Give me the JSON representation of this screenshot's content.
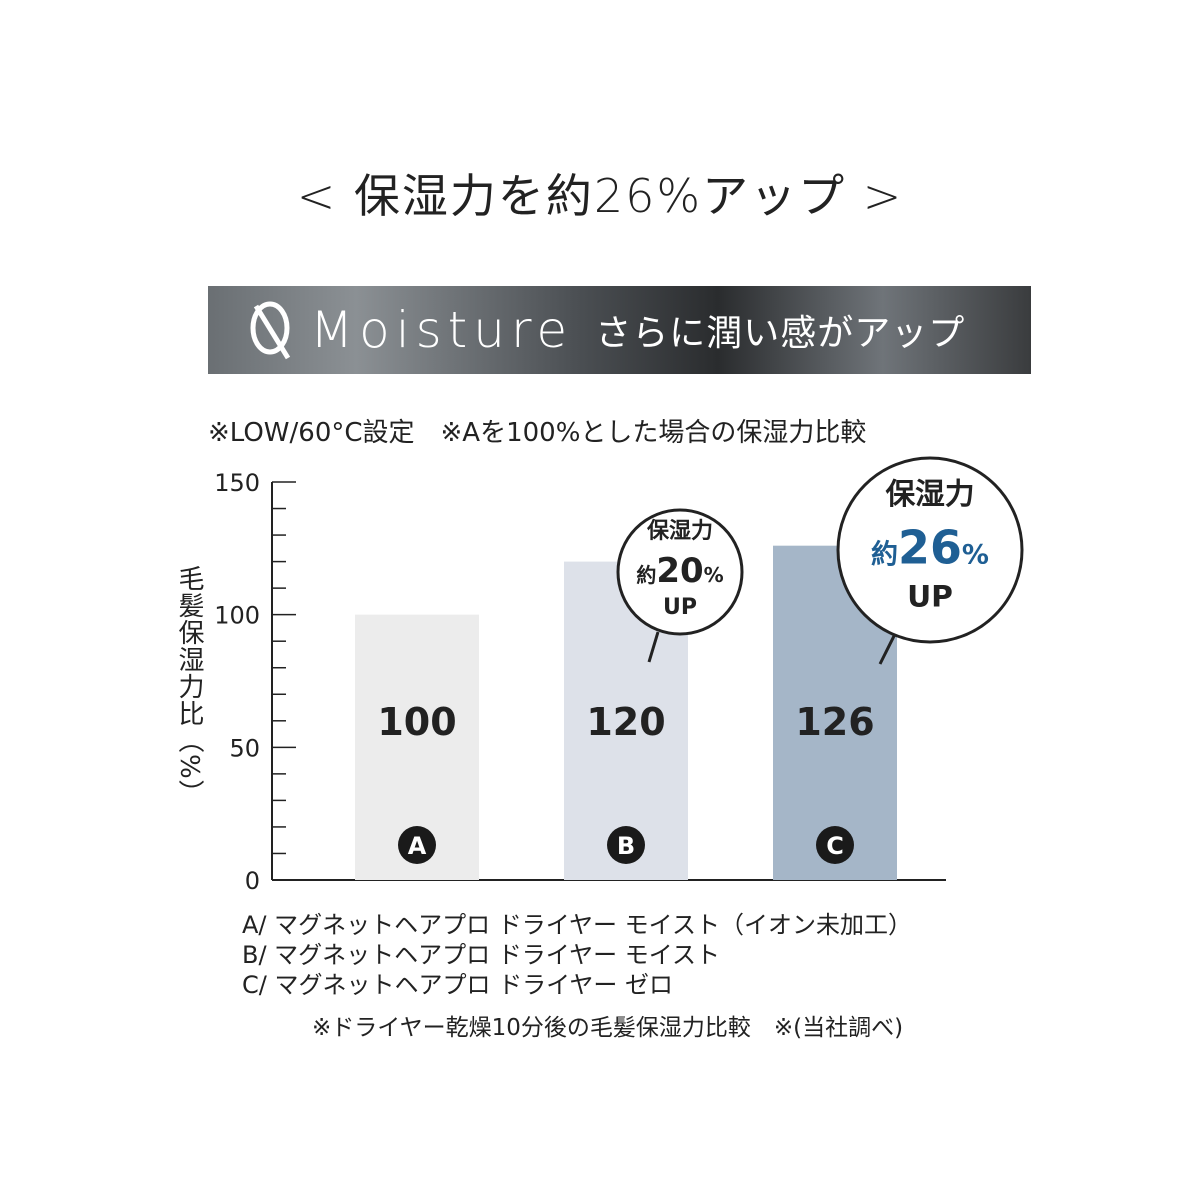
{
  "headline": "< 保湿力を約26%アップ >",
  "banner": {
    "title": "Moisture",
    "subtitle": "さらに潤い感がアップ",
    "icon": "moisture-q-logo-icon"
  },
  "note_top": "※LOW/60°C設定　※Aを100%とした場合の保湿力比較",
  "legend": [
    "A/ マグネットヘアプロ ドライヤー モイスト（イオン未加工）",
    "B/ マグネットヘアプロ ドライヤー モイスト",
    "C/ マグネットヘアプロ ドライヤー ゼロ"
  ],
  "footnote": "※ドライヤー乾燥10分後の毛髪保湿力比較　※(当社調べ)",
  "colors": {
    "bar_a": "#ececec",
    "bar_b": "#dde1e9",
    "bar_c": "#a5b6c8",
    "accent_blue": "#1f5f94",
    "badge": "#1a1a1a"
  },
  "chart_data": {
    "type": "bar",
    "categories": [
      "A",
      "B",
      "C"
    ],
    "values": [
      100,
      120,
      126
    ],
    "value_labels": [
      "100",
      "120",
      "126"
    ],
    "ylabel": "毛髪保湿力比（%）",
    "ylim": [
      0,
      150
    ],
    "yticks": [
      0,
      50,
      100,
      150
    ],
    "minor_tick_step": 10,
    "grid": false,
    "annotations": [
      {
        "category": "B",
        "line1": "保湿力",
        "prefix": "約",
        "number": "20",
        "unit": "%",
        "line3": "UP",
        "highlight": false
      },
      {
        "category": "C",
        "line1": "保湿力",
        "prefix": "約",
        "number": "26",
        "unit": "%",
        "line3": "UP",
        "highlight": true
      }
    ]
  }
}
